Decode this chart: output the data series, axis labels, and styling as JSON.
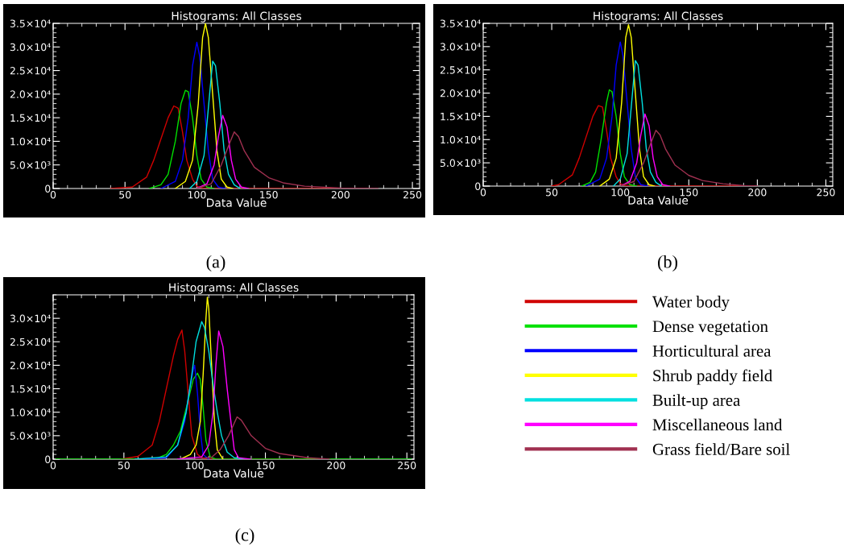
{
  "chart_data": [
    {
      "type": "line",
      "title": "Histograms: All Classes",
      "xlabel": "Data Value",
      "xlim": [
        0,
        255
      ],
      "xticks": [
        0,
        50,
        100,
        150,
        200,
        250
      ],
      "ylim": [
        0,
        35000
      ],
      "yticks": [
        0,
        {
          "value": 5000,
          "label": "5.0×10³"
        },
        {
          "value": 10000,
          "label": "1.0×10⁴"
        },
        {
          "value": 15000,
          "label": "1.5×10⁴"
        },
        {
          "value": 20000,
          "label": "2.0×10⁴"
        },
        {
          "value": 25000,
          "label": "2.5×10⁴"
        },
        {
          "value": 30000,
          "label": "3.0×10⁴"
        },
        {
          "value": 35000,
          "label": "3.5×10⁴"
        }
      ],
      "grid": false,
      "legend": false,
      "annotations": [
        "(a)"
      ],
      "series": [
        {
          "color": "#d00000",
          "x": [
            40,
            55,
            65,
            70,
            75,
            80,
            84,
            87,
            90,
            93,
            97,
            100,
            105,
            217
          ],
          "values": [
            0,
            300,
            2400,
            6000,
            10500,
            15000,
            17500,
            17000,
            12000,
            6000,
            2000,
            500,
            0,
            0
          ]
        },
        {
          "color": "#00e000",
          "x": [
            67,
            75,
            80,
            85,
            89,
            92,
            94,
            97,
            100,
            103,
            107,
            112
          ],
          "values": [
            0,
            800,
            3000,
            10000,
            18000,
            20800,
            20500,
            15000,
            7000,
            2000,
            300,
            0
          ]
        },
        {
          "color": "#0000ff",
          "x": [
            75,
            85,
            90,
            94,
            97,
            100,
            102,
            105,
            108,
            111,
            115,
            120
          ],
          "values": [
            0,
            1500,
            6000,
            15000,
            26000,
            31000,
            28000,
            18000,
            8000,
            2000,
            300,
            0
          ]
        },
        {
          "color": "#ffff00",
          "x": [
            85,
            92,
            97,
            101,
            104,
            106,
            108,
            111,
            114,
            117,
            121,
            125
          ],
          "values": [
            0,
            1500,
            6000,
            18000,
            32000,
            35000,
            32000,
            20000,
            8000,
            2000,
            300,
            0
          ]
        },
        {
          "color": "#00e0e0",
          "x": [
            95,
            100,
            105,
            108,
            111,
            113,
            116,
            119,
            122,
            126,
            130
          ],
          "values": [
            0,
            1500,
            7000,
            17000,
            27000,
            26000,
            18000,
            8000,
            3000,
            800,
            0
          ]
        },
        {
          "color": "#ff00ff",
          "x": [
            100,
            107,
            112,
            115,
            118,
            121,
            124,
            127,
            131,
            136
          ],
          "values": [
            0,
            1000,
            5000,
            11000,
            15500,
            13000,
            6000,
            2000,
            300,
            0
          ]
        },
        {
          "color": "#a03050",
          "x": [
            100,
            110,
            117,
            122,
            126,
            129,
            133,
            140,
            150,
            160,
            175,
            200,
            226
          ],
          "values": [
            0,
            1000,
            5000,
            9000,
            12000,
            11000,
            8000,
            4500,
            2300,
            1200,
            500,
            100,
            0
          ]
        }
      ]
    },
    {
      "type": "line",
      "title": "Histograms: All Classes",
      "xlabel": "Data Value",
      "xlim": [
        0,
        255
      ],
      "xticks": [
        0,
        50,
        100,
        150,
        200,
        250
      ],
      "ylim": [
        0,
        35000
      ],
      "yticks": [
        0,
        {
          "value": 5000,
          "label": "5.0×10³"
        },
        {
          "value": 10000,
          "label": "1.0×10⁴"
        },
        {
          "value": 15000,
          "label": "1.5×10⁴"
        },
        {
          "value": 20000,
          "label": "2.0×10⁴"
        },
        {
          "value": 25000,
          "label": "2.5×10⁴"
        },
        {
          "value": 30000,
          "label": "3.0×10⁴"
        },
        {
          "value": 35000,
          "label": "3.5×10⁴"
        }
      ],
      "grid": false,
      "legend": false,
      "annotations": [
        "(b)"
      ],
      "series": [
        {
          "color": "#d00000",
          "x": [
            50,
            55,
            65,
            70,
            75,
            80,
            84,
            87,
            90,
            93,
            97,
            100,
            105,
            197
          ],
          "values": [
            0,
            300,
            2400,
            6000,
            10500,
            15000,
            17300,
            17000,
            12000,
            6000,
            2000,
            500,
            0,
            0
          ]
        },
        {
          "color": "#00e000",
          "x": [
            72,
            78,
            82,
            86,
            90,
            92,
            94,
            97,
            100,
            103,
            107,
            112
          ],
          "values": [
            0,
            800,
            3000,
            10000,
            18000,
            20700,
            20300,
            15000,
            7000,
            2000,
            300,
            0
          ]
        },
        {
          "color": "#0000ff",
          "x": [
            75,
            85,
            90,
            94,
            97,
            100,
            102,
            105,
            108,
            111,
            115,
            120
          ],
          "values": [
            0,
            1500,
            6000,
            15000,
            26000,
            31000,
            28000,
            18000,
            8000,
            2000,
            300,
            0
          ]
        },
        {
          "color": "#ffff00",
          "x": [
            85,
            92,
            97,
            101,
            104,
            106,
            108,
            111,
            114,
            117,
            121,
            125
          ],
          "values": [
            0,
            1500,
            6000,
            18000,
            32000,
            34700,
            32000,
            20000,
            8000,
            2000,
            300,
            0
          ]
        },
        {
          "color": "#00e0e0",
          "x": [
            95,
            100,
            105,
            108,
            111,
            113,
            116,
            119,
            122,
            126,
            130
          ],
          "values": [
            0,
            1500,
            7000,
            17000,
            27000,
            26000,
            18000,
            8000,
            3000,
            800,
            0
          ]
        },
        {
          "color": "#ff00ff",
          "x": [
            100,
            107,
            112,
            115,
            118,
            121,
            124,
            127,
            131,
            136
          ],
          "values": [
            0,
            1000,
            5000,
            11000,
            15500,
            13000,
            6000,
            2000,
            300,
            0
          ]
        },
        {
          "color": "#a03050",
          "x": [
            100,
            110,
            117,
            122,
            126,
            129,
            133,
            140,
            150,
            160,
            175,
            190,
            200
          ],
          "values": [
            0,
            1000,
            5000,
            9000,
            12000,
            11000,
            8000,
            4500,
            2300,
            1200,
            500,
            100,
            0
          ]
        }
      ]
    },
    {
      "type": "line",
      "title": "Histograms: All Classes",
      "xlabel": "Data Value",
      "xlim": [
        0,
        255
      ],
      "xticks": [
        0,
        50,
        100,
        150,
        200,
        250
      ],
      "ylim": [
        0,
        35000
      ],
      "yticks": [
        0,
        {
          "value": 5000,
          "label": "5.0×10³"
        },
        {
          "value": 10000,
          "label": "1.0×10⁴"
        },
        {
          "value": 15000,
          "label": "1.5×10⁴"
        },
        {
          "value": 20000,
          "label": "2.0×10⁴"
        },
        {
          "value": 25000,
          "label": "2.5×10⁴"
        },
        {
          "value": 30000,
          "label": "3.0×10⁴"
        }
      ],
      "grid": false,
      "legend": "right",
      "annotations": [
        "(c)"
      ],
      "series": [
        {
          "name": "Water body",
          "color": "#d00000",
          "x": [
            48,
            60,
            70,
            75,
            80,
            85,
            88,
            91,
            93,
            96,
            98,
            102,
            107,
            196
          ],
          "values": [
            0,
            600,
            3000,
            8000,
            15000,
            22000,
            25500,
            27500,
            23000,
            12000,
            5000,
            1000,
            0,
            0
          ]
        },
        {
          "name": "Dense vegetation",
          "color": "#00e000",
          "x": [
            2,
            72,
            80,
            85,
            90,
            95,
            99,
            102,
            104,
            106,
            108,
            111,
            115,
            253
          ],
          "values": [
            0,
            0,
            1000,
            3000,
            6000,
            12000,
            17000,
            18300,
            17000,
            11000,
            4000,
            500,
            0,
            0
          ]
        },
        {
          "name": "Horticultural area",
          "color": "#0000ff",
          "x": [
            60,
            80,
            88,
            93,
            96,
            99,
            100,
            102,
            104,
            106,
            110
          ],
          "values": [
            0,
            300,
            3000,
            8000,
            14000,
            19000,
            20000,
            14000,
            6000,
            1000,
            0
          ]
        },
        {
          "name": "Shrub paddy field",
          "color": "#ffff00",
          "x": [
            90,
            97,
            101,
            104,
            106,
            108,
            109,
            110,
            112,
            114,
            116,
            120
          ],
          "values": [
            0,
            1000,
            3000,
            8000,
            18000,
            30000,
            34500,
            32000,
            20000,
            8000,
            2000,
            0
          ]
        },
        {
          "name": "Built-up area",
          "color": "#00e0e0",
          "x": [
            58,
            80,
            88,
            94,
            98,
            101,
            105,
            107,
            110,
            113,
            116,
            119,
            123,
            128,
            135
          ],
          "values": [
            0,
            500,
            3000,
            10000,
            18000,
            25000,
            29300,
            28000,
            23000,
            16000,
            10000,
            5000,
            1500,
            300,
            0
          ]
        },
        {
          "name": "Miscellaneous land",
          "color": "#ff00ff",
          "x": [
            88,
            105,
            110,
            113,
            115,
            117,
            120,
            123,
            126,
            128,
            131,
            140
          ],
          "values": [
            0,
            500,
            3000,
            10000,
            20000,
            27300,
            24000,
            15000,
            7000,
            2000,
            300,
            0
          ]
        },
        {
          "name": "Grass field/Bare soil",
          "color": "#a03050",
          "x": [
            100,
            112,
            118,
            124,
            130,
            133,
            140,
            150,
            160,
            180,
            195
          ],
          "values": [
            0,
            400,
            2000,
            5000,
            9000,
            8300,
            5000,
            2300,
            1200,
            300,
            0
          ]
        }
      ]
    }
  ]
}
